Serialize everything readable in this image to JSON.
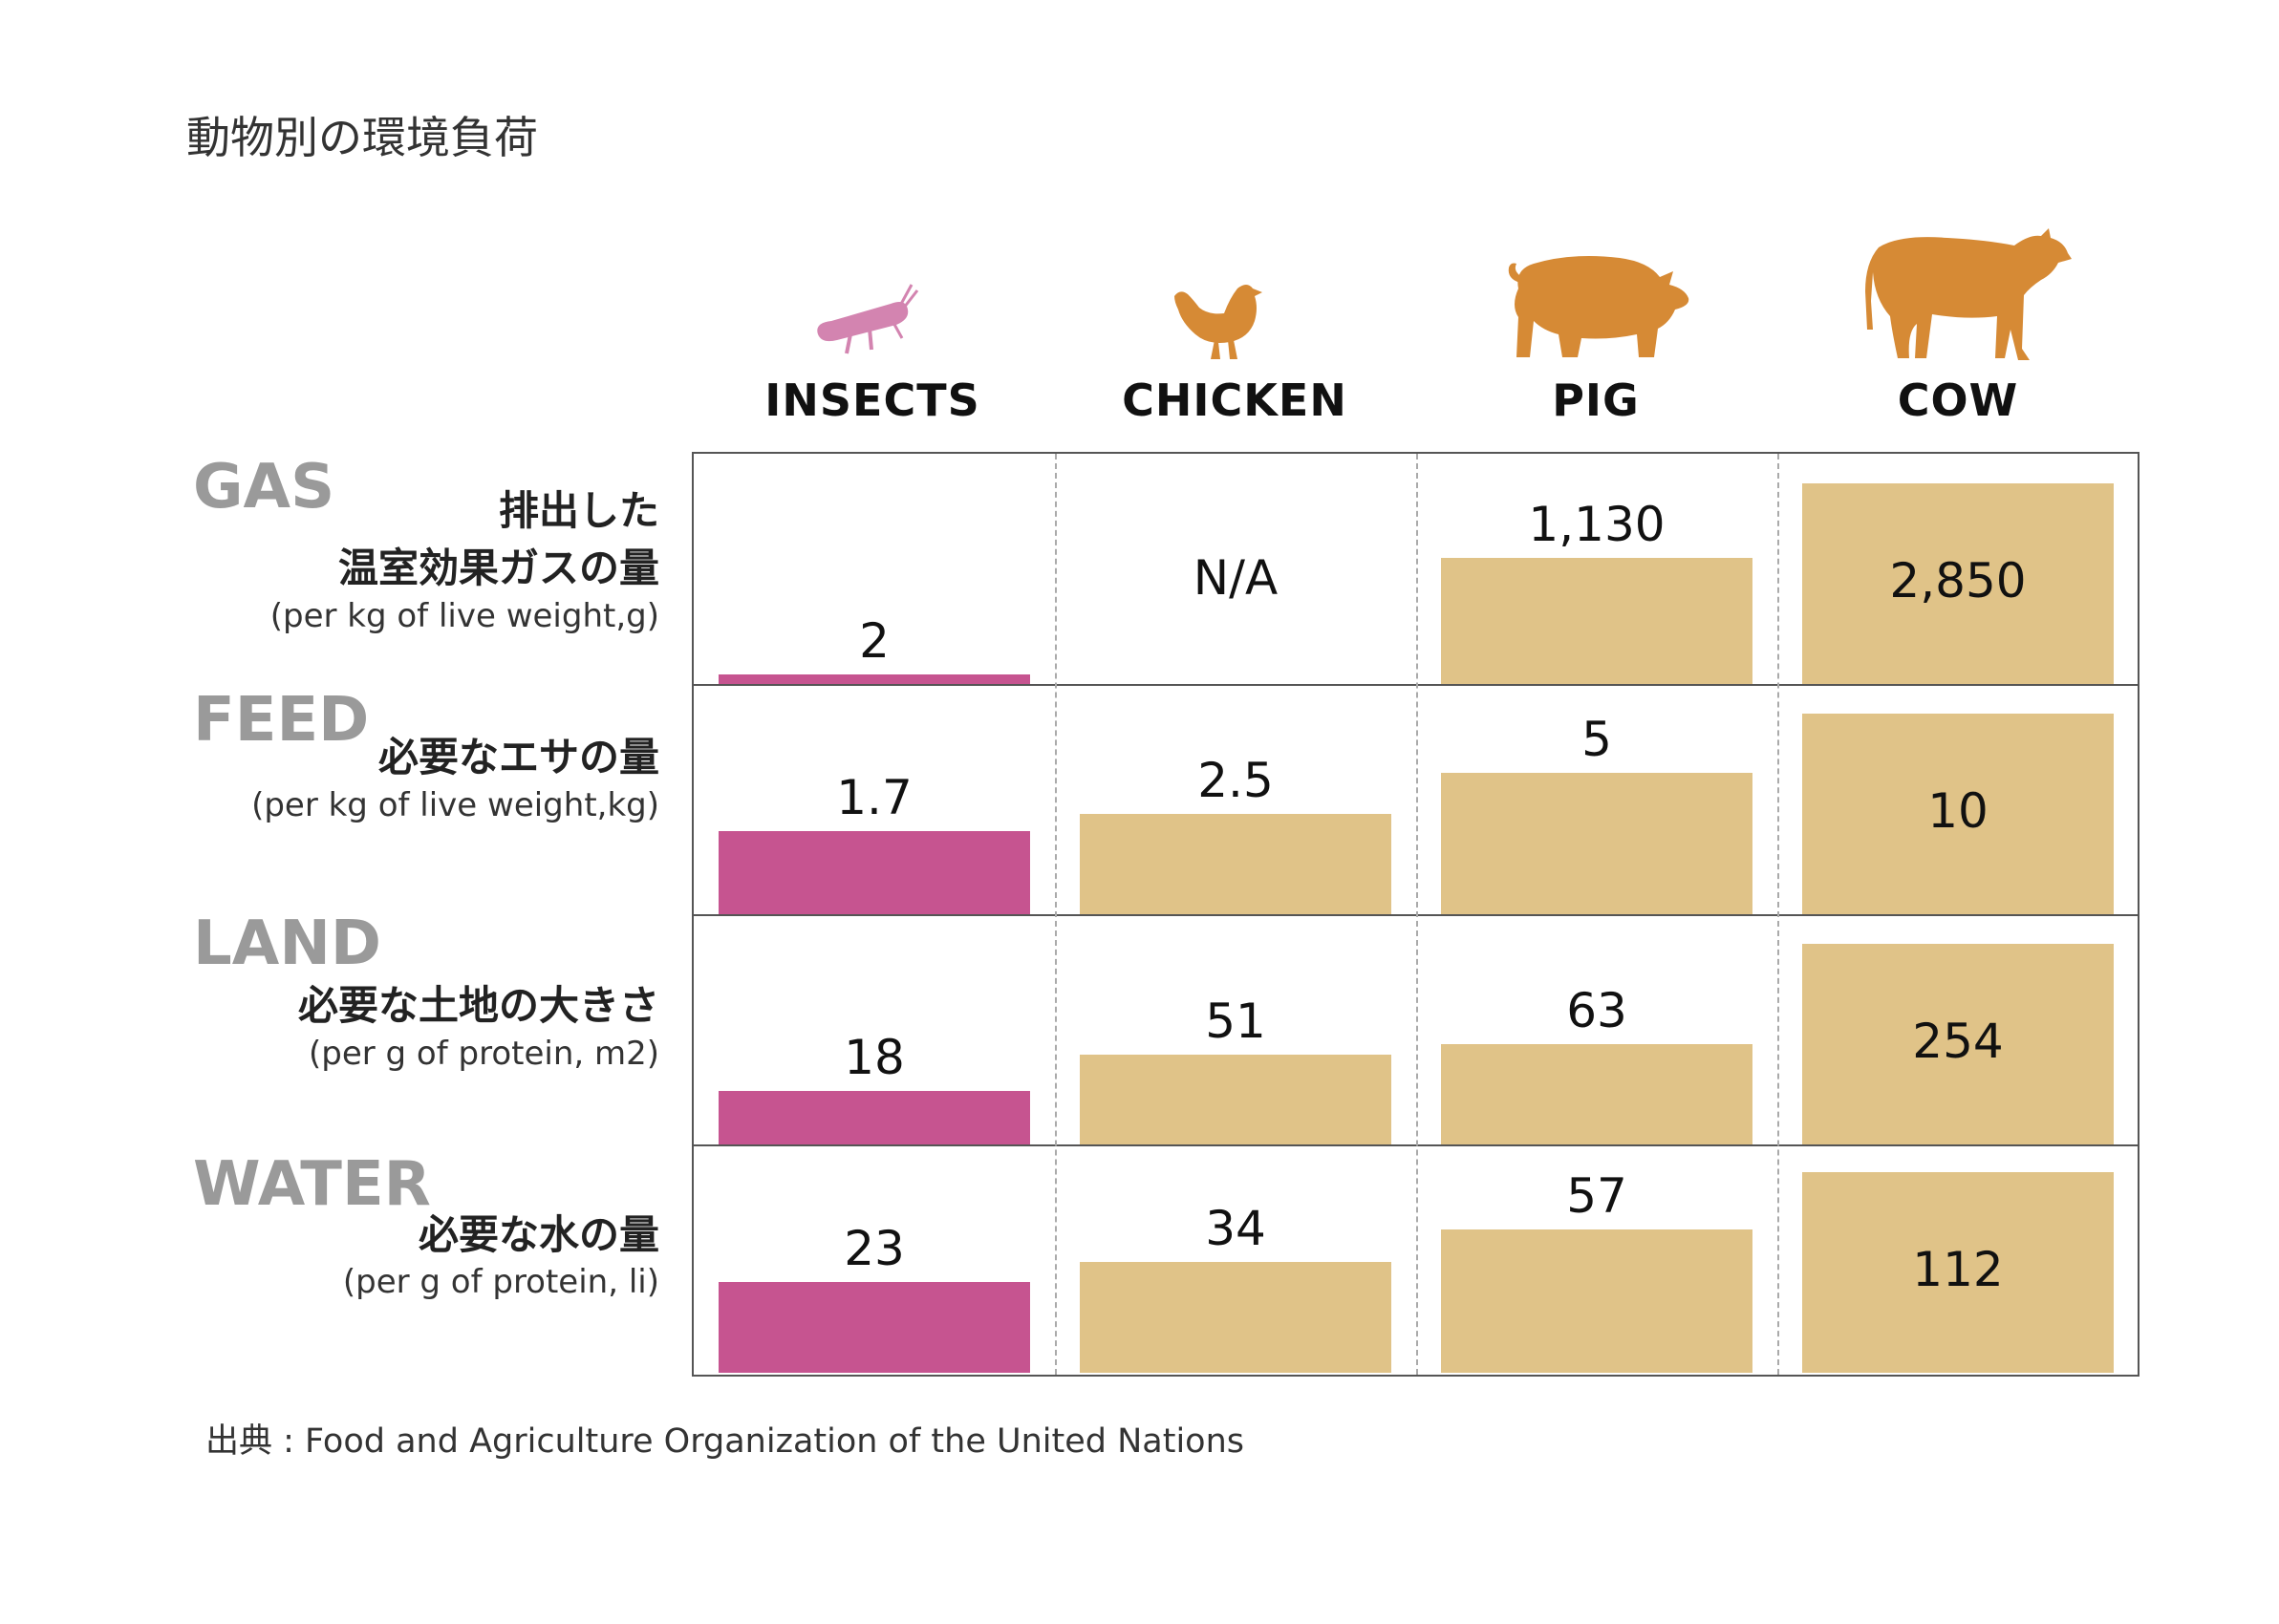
{
  "title": "動物別の環境負荷",
  "source": "出典 : Food and Agriculture Organization of the United Nations",
  "colors": {
    "insect": "#c65490",
    "insect_icon": "#d384b0",
    "other": "#e0c388",
    "animal_icon": "#d68a35"
  },
  "animals": [
    {
      "key": "insects",
      "label": "INSECTS",
      "icon": "insect-icon"
    },
    {
      "key": "chicken",
      "label": "CHICKEN",
      "icon": "chicken-icon"
    },
    {
      "key": "pig",
      "label": "PIG",
      "icon": "pig-icon"
    },
    {
      "key": "cow",
      "label": "COW",
      "icon": "cow-icon"
    }
  ],
  "chart_data": {
    "type": "bar",
    "categories": [
      "INSECTS",
      "CHICKEN",
      "PIG",
      "COW"
    ],
    "rows": [
      {
        "key": "gas",
        "label": "GAS",
        "label_ja": [
          "排出した",
          "温室効果ガスの量"
        ],
        "unit": "(per kg of live weight,g)",
        "values": [
          2,
          null,
          1130,
          2850
        ],
        "labels": [
          "2",
          "N/A",
          "1,130",
          "2,850"
        ]
      },
      {
        "key": "feed",
        "label": "FEED",
        "label_ja": [
          "必要なエサの量"
        ],
        "unit": "(per kg of live weight,kg)",
        "values": [
          1.7,
          2.5,
          5,
          10
        ],
        "labels": [
          "1.7",
          "2.5",
          "5",
          "10"
        ]
      },
      {
        "key": "land",
        "label": "LAND",
        "label_ja": [
          "必要な土地の大きさ"
        ],
        "unit": "(per g of protein, m2)",
        "values": [
          18,
          51,
          63,
          254
        ],
        "labels": [
          "18",
          "51",
          "63",
          "254"
        ]
      },
      {
        "key": "water",
        "label": "WATER",
        "label_ja": [
          "必要な水の量"
        ],
        "unit": "(per g of protein, li)",
        "values": [
          23,
          34,
          57,
          112
        ],
        "labels": [
          "23",
          "34",
          "57",
          "112"
        ]
      }
    ]
  }
}
